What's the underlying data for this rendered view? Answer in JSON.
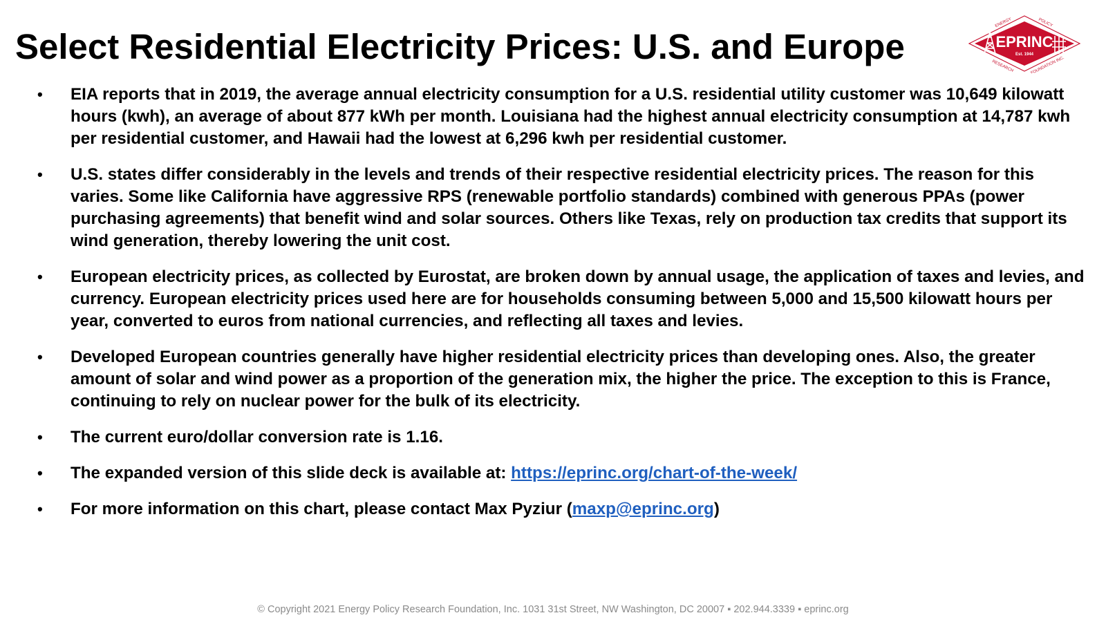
{
  "title": "Select Residential Electricity Prices: U.S. and Europe",
  "logo": {
    "name": "EPRINC",
    "est": "Est. 1944",
    "ring_top": "ENERGY",
    "ring_top_right": "POLICY",
    "ring_bottom_left": "RESEARCH",
    "ring_bottom_right": "FOUNDATION INC.",
    "color": "#c8102e"
  },
  "bullet_symbol": "•",
  "bullets": [
    {
      "text": "EIA reports that in 2019, the average annual electricity consumption for a U.S. residential utility customer was 10,649 kilowatt hours (kwh), an average of about 877 kWh per month. Louisiana had the highest annual electricity consumption at 14,787 kwh per residential customer, and Hawaii had the lowest at 6,296 kwh per residential customer."
    },
    {
      "text": "U.S. states differ considerably in the levels and trends of their respective residential electricity prices. The reason for this varies. Some like California have aggressive RPS (renewable portfolio standards) combined with generous PPAs (power purchasing agreements) that benefit wind and solar sources. Others like Texas, rely on production tax credits that support its wind generation, thereby lowering the unit cost."
    },
    {
      "text": "European electricity prices, as collected by Eurostat, are broken down by annual usage, the application of taxes and levies, and currency. European electricity prices used here are for households consuming between 5,000 and 15,500 kilowatt hours per year, converted to euros from national currencies, and reflecting all taxes and levies."
    },
    {
      "text": "Developed European countries generally have higher residential electricity prices than developing ones. Also, the greater amount of solar and wind power as a proportion of the generation mix, the higher the price. The exception to this is France, continuing to rely on nuclear power for the bulk of its electricity."
    },
    {
      "text": "The current euro/dollar conversion rate is 1.16."
    },
    {
      "text": "The expanded version of this slide deck is available at: ",
      "link": "https://eprinc.org/chart-of-the-week/"
    },
    {
      "text": "For more information on this chart, please contact Max Pyziur (",
      "link": "maxp@eprinc.org",
      "text_after": ")"
    }
  ],
  "link_color": "#1f5fbf",
  "footer": "© Copyright 2021 Energy Policy Research Foundation, Inc. 1031 31st Street, NW Washington, DC 20007 ▪ 202.944.3339 ▪ eprinc.org"
}
